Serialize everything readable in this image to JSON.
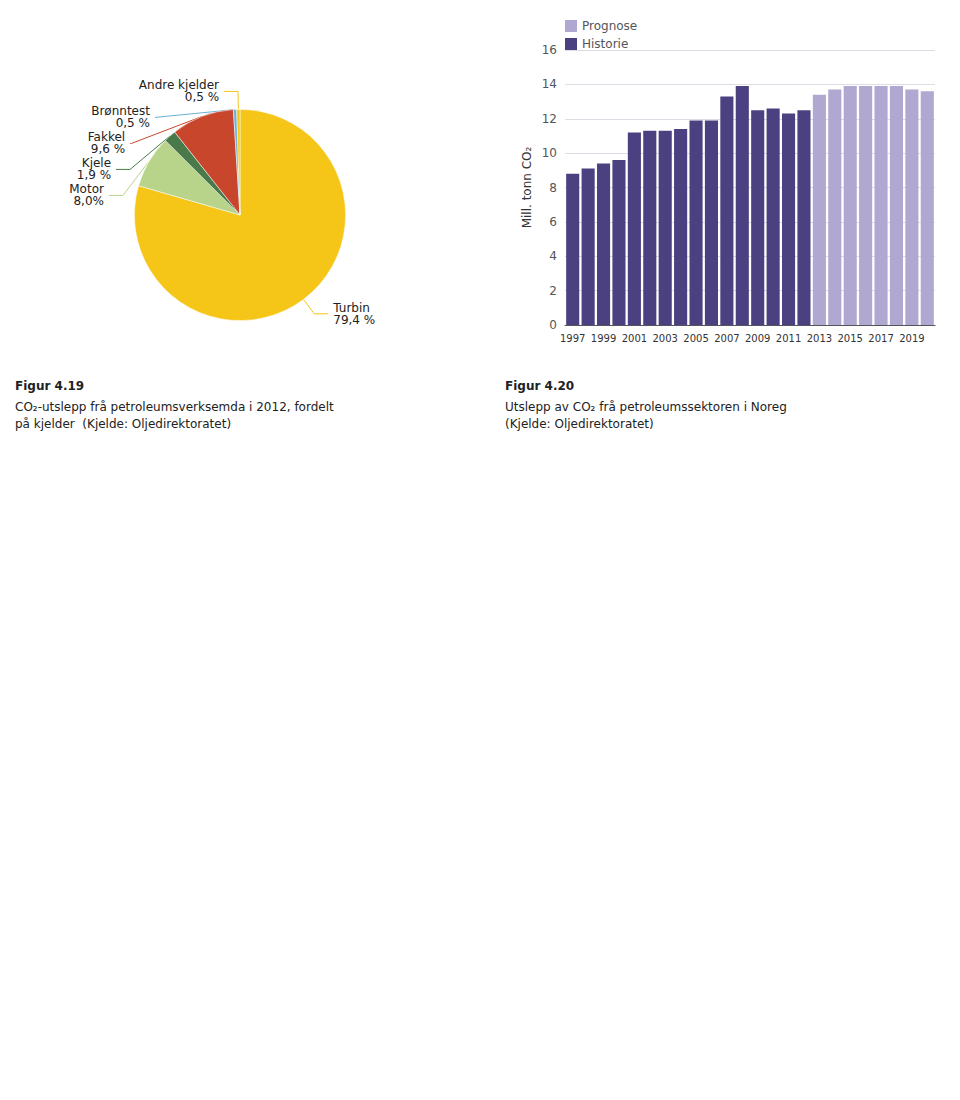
{
  "chart_data": [
    {
      "type": "pie",
      "title": "Figur 4.19",
      "subtitle": "CO₂-utslepp frå petroleumsverksemda i 2012, fordelt\npå kjelder  (Kjelde: Oljedirektoratet)",
      "categories": [
        "Turbin",
        "Motor",
        "Kjele",
        "Fakkel",
        "Brønntest",
        "Andre kjelder"
      ],
      "values": [
        79.4,
        8.0,
        1.9,
        9.6,
        0.5,
        0.5
      ],
      "value_labels": [
        "79,4 %",
        "8,0%",
        "1,9 %",
        "9,6 %",
        "0,5 %",
        "0,5 %"
      ],
      "colors": [
        "#F5C518",
        "#B8D48A",
        "#4A7A4A",
        "#C8472C",
        "#6EB0D8",
        "#F5C518"
      ],
      "data_labels": true
    },
    {
      "type": "bar",
      "title": "Figur 4.20",
      "subtitle": "Utslepp av CO₂ frå petroleumssektoren i Noreg\n(Kjelde: Oljedirektoratet)",
      "categories": [
        "1997",
        null,
        "1999",
        null,
        "2001",
        null,
        "2003",
        null,
        "2005",
        null,
        "2007",
        null,
        "2009",
        null,
        "2011",
        null,
        "2013",
        null,
        "2015",
        null,
        "2017",
        null,
        "2019",
        null
      ],
      "series": [
        {
          "name": "Prognose",
          "color": "#B0A8D0",
          "values": [
            null,
            null,
            null,
            null,
            null,
            null,
            null,
            null,
            null,
            null,
            null,
            null,
            null,
            null,
            null,
            null,
            13.4,
            13.7,
            13.9,
            13.9,
            13.9,
            13.9,
            13.7,
            13.6
          ]
        },
        {
          "name": "Historie",
          "color": "#4B4080",
          "values": [
            8.8,
            9.1,
            9.4,
            9.6,
            11.2,
            11.3,
            11.3,
            11.4,
            11.9,
            11.9,
            13.3,
            13.9,
            12.5,
            12.6,
            12.3,
            12.5,
            null,
            null,
            null,
            null,
            null,
            null,
            null,
            null
          ]
        }
      ],
      "ylabel": "Mill. tonn CO₂",
      "ylim": [
        0,
        16
      ],
      "yticks": [
        0,
        2,
        4,
        6,
        8,
        10,
        12,
        14,
        16
      ],
      "grid": true,
      "legend": "upper left"
    }
  ]
}
